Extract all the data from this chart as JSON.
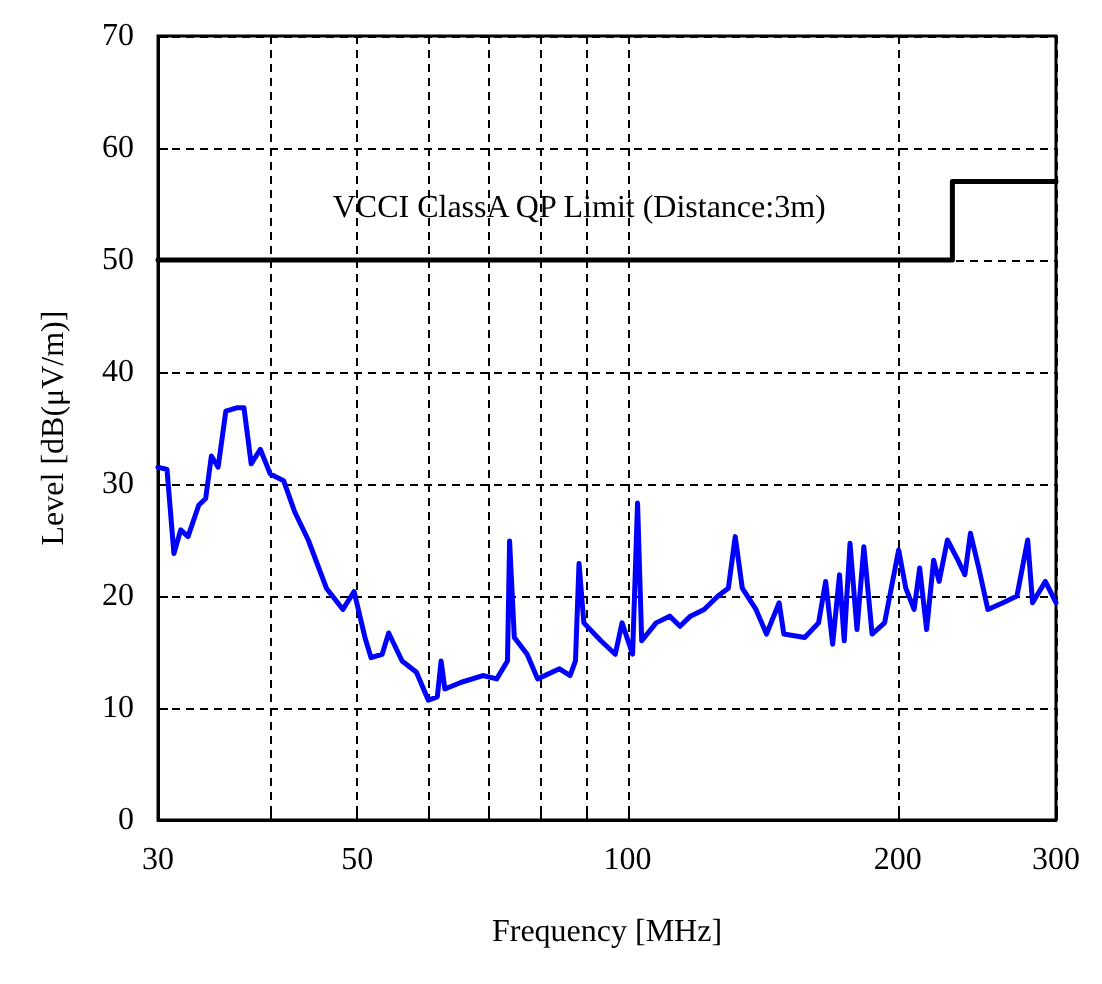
{
  "chart_data": {
    "type": "line",
    "xlabel": "Frequency [MHz]",
    "ylabel": "Level [dB(μV/m)]",
    "log": "x",
    "grid": true,
    "marker": "none",
    "line_style": "solid",
    "xlim": [
      30,
      300
    ],
    "xticks": [
      30,
      {
        "value": 40,
        "label": null
      },
      50,
      {
        "value": 60,
        "label": null
      },
      {
        "value": 70,
        "label": null
      },
      {
        "value": 80,
        "label": null
      },
      {
        "value": 90,
        "label": null
      },
      100,
      200,
      300
    ],
    "ylim": [
      0,
      70
    ],
    "yticks": [
      0,
      10,
      20,
      30,
      40,
      50,
      60,
      70
    ],
    "series": [
      {
        "color": "#0000ff",
        "x": [
          30,
          30.7,
          31.25,
          31.8,
          32.4,
          33.3,
          33.9,
          34.4,
          35.0,
          35.7,
          36.7,
          37.4,
          38.1,
          39.0,
          40.0,
          41.4,
          42.6,
          44.1,
          46.2,
          48.2,
          49.6,
          51.0,
          51.8,
          53.3,
          54.2,
          56.1,
          58.2,
          60.0,
          61.4,
          62.0,
          62.6,
          65.3,
          69.0,
          71.5,
          73.5,
          73.9,
          74.8,
          77.3,
          79.4,
          84.0,
          86.3,
          87.5,
          88.3,
          89.4,
          93.4,
          96.9,
          98.6,
          101.3,
          102.6,
          103.7,
          107.6,
          111.4,
          114.4,
          117.5,
          121.7,
          126.1,
          129.5,
          131.8,
          134.2,
          139.0,
          142.8,
          147.5,
          149.3,
          157.5,
          163.2,
          166.2,
          169.2,
          172.2,
          174.3,
          176.9,
          180.1,
          183.3,
          187.2,
          193.3,
          200.4,
          204.1,
          208.5,
          211.5,
          215.3,
          219.2,
          222.3,
          227.1,
          233.3,
          237.5,
          240.9,
          246.1,
          251.9,
          261.9,
          271.4,
          279.0,
          282.5,
          291.9,
          300
        ],
        "values": [
          31.5,
          31.3,
          23.8,
          25.9,
          25.3,
          28.1,
          28.7,
          32.5,
          31.5,
          36.5,
          36.8,
          36.8,
          31.8,
          33.1,
          30.9,
          30.3,
          27.5,
          25.0,
          20.7,
          18.8,
          20.4,
          16.3,
          14.5,
          14.8,
          16.7,
          14.2,
          13.2,
          10.7,
          11.0,
          14.2,
          11.7,
          12.3,
          12.9,
          12.6,
          14.2,
          24.9,
          16.3,
          14.8,
          12.6,
          13.5,
          12.9,
          14.2,
          22.9,
          17.6,
          16.0,
          14.8,
          17.6,
          14.8,
          28.3,
          16.0,
          17.6,
          18.2,
          17.3,
          18.2,
          18.8,
          20.0,
          20.7,
          25.3,
          20.7,
          18.8,
          16.6,
          19.4,
          16.6,
          16.3,
          17.6,
          21.3,
          15.7,
          21.9,
          16.0,
          24.7,
          17.0,
          24.4,
          16.6,
          17.6,
          24.1,
          20.7,
          18.8,
          22.5,
          17.0,
          23.2,
          21.3,
          25.0,
          23.2,
          21.9,
          25.6,
          22.5,
          18.8,
          19.4,
          20.0,
          25.0,
          19.4,
          21.3,
          19.4
        ]
      },
      {
        "name": "VCCI ClassA QP Limit (Distance:3m)",
        "color": "#000000",
        "x": [
          30,
          230,
          230,
          300
        ],
        "values": [
          50,
          50,
          57,
          57
        ]
      }
    ]
  }
}
